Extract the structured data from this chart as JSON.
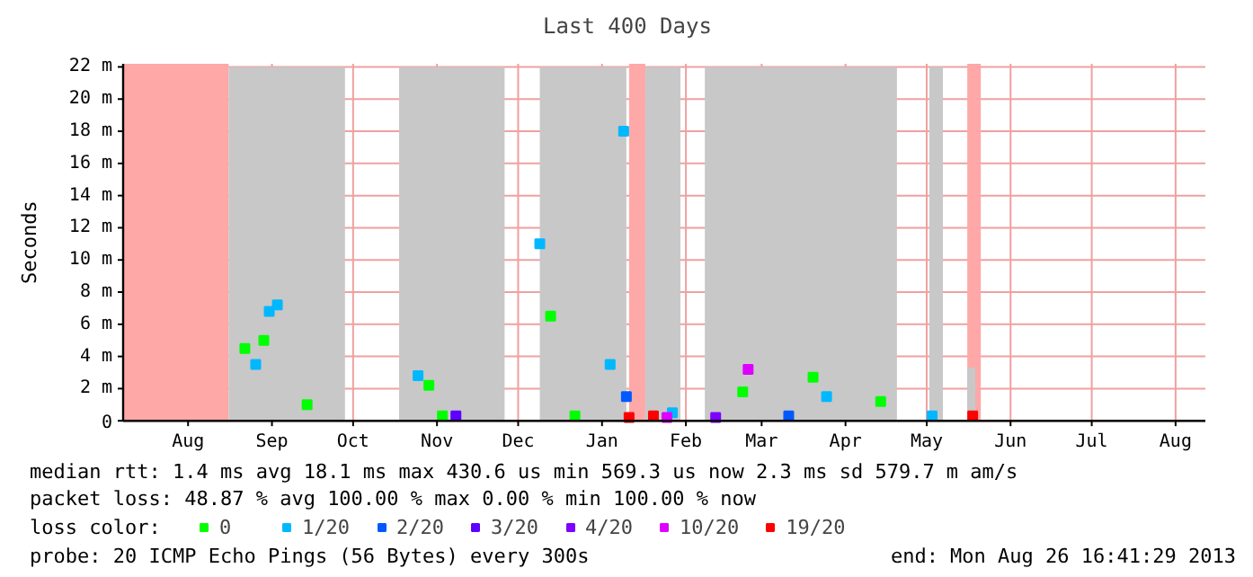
{
  "chart_data": {
    "type": "scatter",
    "title": "Last 400 Days",
    "ylabel": "Seconds",
    "xlim": [
      "2012-07-22",
      "2013-08-26"
    ],
    "xticks": [
      {
        "value": "2012-08-15",
        "label": "Aug"
      },
      {
        "value": "2012-09-15",
        "label": "Sep"
      },
      {
        "value": "2012-10-15",
        "label": "Oct"
      },
      {
        "value": "2012-11-15",
        "label": "Nov"
      },
      {
        "value": "2012-12-15",
        "label": "Dec"
      },
      {
        "value": "2013-01-15",
        "label": "Jan"
      },
      {
        "value": "2013-02-15",
        "label": "Feb"
      },
      {
        "value": "2013-03-15",
        "label": "Mar"
      },
      {
        "value": "2013-04-15",
        "label": "Apr"
      },
      {
        "value": "2013-05-15",
        "label": "May"
      },
      {
        "value": "2013-06-15",
        "label": "Jun"
      },
      {
        "value": "2013-07-15",
        "label": "Jul"
      },
      {
        "value": "2013-08-15",
        "label": "Aug"
      }
    ],
    "ylim": [
      0,
      22.2
    ],
    "yticks": [
      0,
      {
        "value": 2,
        "label": "2 m"
      },
      {
        "value": 4,
        "label": "4 m"
      },
      {
        "value": 6,
        "label": "6 m"
      },
      {
        "value": 8,
        "label": "8 m"
      },
      {
        "value": 10,
        "label": "10 m"
      },
      {
        "value": 12,
        "label": "12 m"
      },
      {
        "value": 14,
        "label": "14 m"
      },
      {
        "value": 16,
        "label": "16 m"
      },
      {
        "value": 18,
        "label": "18 m"
      },
      {
        "value": 20,
        "label": "20 m"
      },
      {
        "value": 22,
        "label": "22 m"
      }
    ],
    "grid": true,
    "legend": "bottom",
    "legend_title": "loss color:",
    "series": [
      {
        "type": "area",
        "color": "#c8c8c8",
        "x": [
          "2012-08-30",
          "2012-09-20",
          "2012-10-05",
          "2012-10-12",
          "2012-10-13",
          "2012-11-01",
          "2012-11-20",
          "2012-12-10",
          "2012-12-11",
          "2012-12-23",
          "2013-01-10",
          "2013-01-24",
          "2013-01-25",
          "2013-01-31",
          "2013-02-13",
          "2013-02-14",
          "2013-02-22",
          "2013-03-10",
          "2013-04-10",
          "2013-05-04",
          "2013-05-05",
          "2013-05-16",
          "2013-05-21",
          "2013-05-22",
          "2013-05-30",
          "2013-06-02"
        ],
        "values": [
          22,
          22,
          22,
          22,
          null,
          22,
          22,
          22,
          null,
          22,
          22,
          22,
          null,
          22,
          22,
          null,
          22,
          22,
          22,
          22,
          null,
          22,
          22,
          null,
          3.3,
          3.3
        ]
      },
      {
        "name": "0",
        "color": "#00ff00",
        "marker": "square",
        "x": [
          "2012-09-05",
          "2012-09-12",
          "2012-09-28",
          "2012-11-12",
          "2012-11-17",
          "2012-12-27",
          "2013-01-05",
          "2013-03-08",
          "2013-04-03",
          "2013-04-28"
        ],
        "values": [
          4.5,
          5,
          1,
          2.2,
          0.3,
          6.5,
          0.3,
          1.8,
          2.7,
          1.2
        ]
      },
      {
        "name": "1/20",
        "color": "#00b8ff",
        "marker": "square",
        "x": [
          "2012-09-09",
          "2012-09-14",
          "2012-09-17",
          "2012-11-08",
          "2012-12-23",
          "2013-01-18",
          "2013-01-23",
          "2013-02-10",
          "2013-04-08",
          "2013-05-17"
        ],
        "values": [
          3.5,
          6.8,
          7.2,
          2.8,
          11,
          3.5,
          18,
          0.5,
          1.5,
          0.3
        ]
      },
      {
        "name": "2/20",
        "color": "#0059ff",
        "marker": "square",
        "x": [
          "2013-01-24",
          "2013-03-25"
        ],
        "values": [
          1.5,
          0.3
        ]
      },
      {
        "name": "3/20",
        "color": "#5e00ff",
        "marker": "square",
        "x": [
          "2012-11-22"
        ],
        "values": [
          0.3
        ]
      },
      {
        "name": "4/20",
        "color": "#7e00ff",
        "marker": "square",
        "x": [
          "2013-02-26"
        ],
        "values": [
          0.2
        ]
      },
      {
        "name": "10/20",
        "color": "#dd00ff",
        "marker": "square",
        "x": [
          "2013-02-08",
          "2013-03-10"
        ],
        "values": [
          0.2,
          3.2
        ]
      },
      {
        "name": "19/20",
        "color": "#ff0000",
        "marker": "square",
        "x": [
          "2013-01-25",
          "2013-02-03",
          "2013-06-01"
        ],
        "values": [
          0.2,
          0.3,
          0.3
        ]
      }
    ],
    "bands": [
      {
        "axis": "x",
        "from": "2012-07-22",
        "to": "2012-08-30",
        "color": "#ffa8a8"
      },
      {
        "axis": "x",
        "from": "2013-01-25",
        "to": "2013-01-31",
        "color": "#ffa8a8"
      },
      {
        "axis": "x",
        "from": "2013-05-30",
        "to": "2013-06-04",
        "color": "#ffa8a8"
      }
    ],
    "annotations": [
      "median rtt:  1.4 ms avg  18.1 ms max  430.6 us min  569.3 us now  2.3 ms sd  579.7 m am/s",
      "packet loss: 48.87 % avg  100.00 % max  0.00 % min  100.00 % now",
      "probe:        20 ICMP Echo Pings (56 Bytes) every 300s",
      "end: Mon Aug 26 16:41:29 2013"
    ]
  }
}
